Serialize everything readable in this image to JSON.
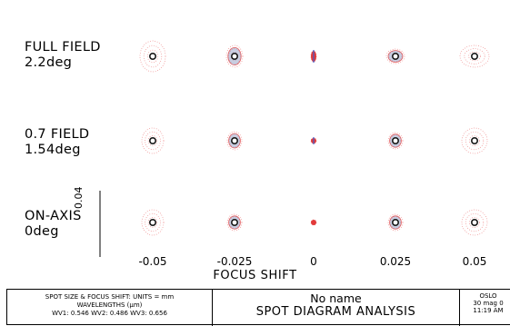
{
  "rows": [
    {
      "label_line1": "FULL FIELD",
      "label_line2": "2.2deg"
    },
    {
      "label_line1": "0.7 FIELD",
      "label_line2": "1.54deg"
    },
    {
      "label_line1": "ON-AXIS",
      "label_line2": "0deg"
    }
  ],
  "focus_shifts": [
    "-0.05",
    "-0.025",
    "0",
    "0.025",
    "0.05"
  ],
  "axis_title": "FOCUS SHIFT",
  "scale_label": "0.04",
  "footer": {
    "left_line1": "SPOT SIZE & FOCUS SHIFT: UNITS = mm",
    "left_line2": "WAVELENGTHS (μm)",
    "left_line3": "WV1: 0.546 WV2: 0.486 WV3: 0.656",
    "mid_line1": "No name",
    "mid_line2": "SPOT DIAGRAM ANALYSIS",
    "right_line1": "OSLO",
    "right_line2": "30 mag 0",
    "right_line3": "11:19 AM"
  },
  "colors": {
    "wv1": "#1a1a1a",
    "wv2": "#3f5fd0",
    "wv3": "#e23a3a"
  }
}
